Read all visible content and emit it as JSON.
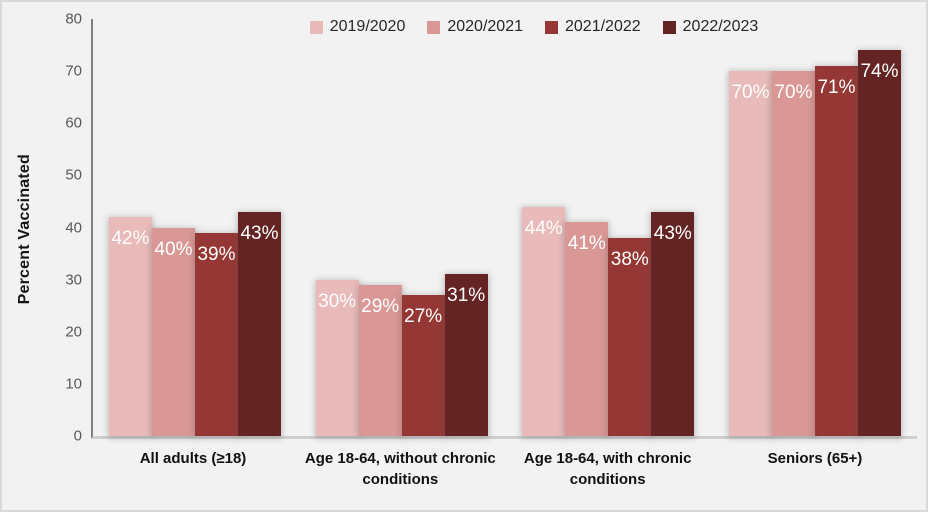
{
  "chart_data": {
    "type": "bar",
    "title": "",
    "xlabel": "",
    "ylabel": "Percent Vaccinated",
    "ylim": [
      0,
      80
    ],
    "yticks": [
      0,
      10,
      20,
      30,
      40,
      50,
      60,
      70,
      80
    ],
    "grid": false,
    "legend_position": "top",
    "data_label_suffix": "%",
    "categories": [
      "All adults (≥18)",
      "Age 18-64, without chronic conditions",
      "Age 18-64, with chronic conditions",
      "Seniors (65+)"
    ],
    "series": [
      {
        "name": "2019/2020",
        "color": "#e8bab9",
        "values": [
          42,
          30,
          44,
          70
        ]
      },
      {
        "name": "2020/2021",
        "color": "#d99795",
        "values": [
          40,
          29,
          41,
          70
        ]
      },
      {
        "name": "2021/2022",
        "color": "#953734",
        "values": [
          39,
          27,
          38,
          71
        ]
      },
      {
        "name": "2022/2023",
        "color": "#632423",
        "values": [
          43,
          31,
          43,
          74
        ]
      }
    ]
  },
  "colors": {
    "background": "#f2f2f2",
    "frame_border": "#d9d9d9",
    "y_axis_line": "#7f7f7f",
    "x_axis_line": "#cfcfcf",
    "tick_text": "#595959",
    "legend_text": "#262626",
    "category_text": "#111111",
    "data_label_text": "#ffffff"
  }
}
